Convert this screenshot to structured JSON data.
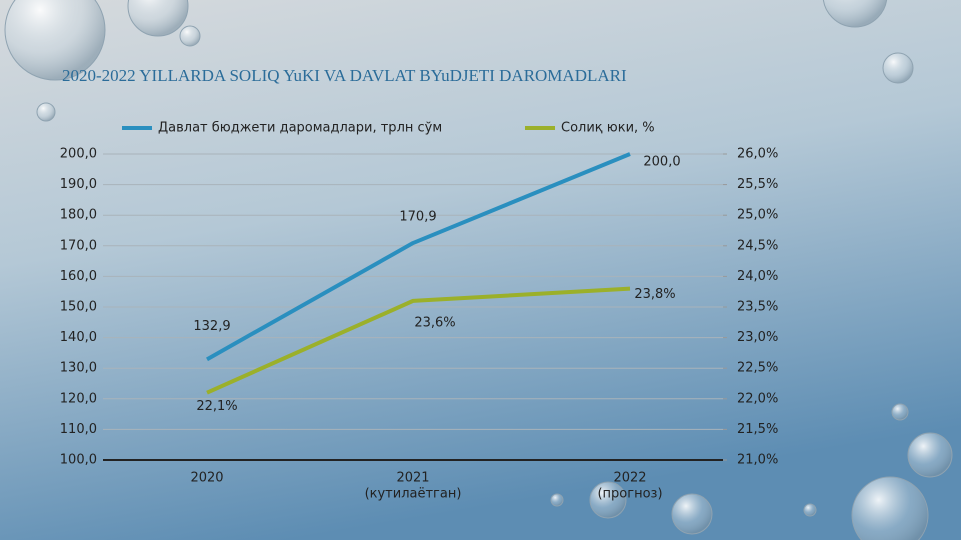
{
  "chart_data": {
    "type": "line",
    "title": "2020-2022 YILLARDA SOLIQ YuKI VA DAVLAT BYuDJETI DAROMADLARI",
    "categories": [
      "2020",
      "2021",
      "2022"
    ],
    "category_notes": [
      null,
      "(кутилаётган)",
      "(прогноз)"
    ],
    "series": [
      {
        "name": "Давлат бюджети даромадлари, трлн сўм",
        "color": "#2a8fbf",
        "values": [
          132.9,
          170.9,
          200.0
        ],
        "value_labels": [
          "132,9",
          "170,9",
          "200,0"
        ]
      },
      {
        "name": "Солиқ юки, %",
        "color": "#9bb02a",
        "axis": "y2",
        "values": [
          22.1,
          23.6,
          23.8
        ],
        "value_labels": [
          "22,1%",
          "23,6%",
          "23,8%"
        ]
      }
    ],
    "ylim": [
      100,
      200
    ],
    "yticks": [
      {
        "value": 100,
        "label": "100,0"
      },
      {
        "value": 110,
        "label": "110,0"
      },
      {
        "value": 120,
        "label": "120,0"
      },
      {
        "value": 130,
        "label": "130,0"
      },
      {
        "value": 140,
        "label": "140,0"
      },
      {
        "value": 150,
        "label": "150,0"
      },
      {
        "value": 160,
        "label": "160,0"
      },
      {
        "value": 170,
        "label": "170,0"
      },
      {
        "value": 180,
        "label": "180,0"
      },
      {
        "value": 190,
        "label": "190,0"
      },
      {
        "value": 200,
        "label": "200,0"
      }
    ],
    "y2lim": [
      21,
      26
    ],
    "y2ticks": [
      {
        "value": 21,
        "label": "21,0%"
      },
      {
        "value": 21.5,
        "label": "21,5%"
      },
      {
        "value": 22,
        "label": "22,0%"
      },
      {
        "value": 22.5,
        "label": "22,5%"
      },
      {
        "value": 23,
        "label": "23,0%"
      },
      {
        "value": 23.5,
        "label": "23,5%"
      },
      {
        "value": 24,
        "label": "24,0%"
      },
      {
        "value": 24.5,
        "label": "24,5%"
      },
      {
        "value": 25,
        "label": "25,0%"
      },
      {
        "value": 25.5,
        "label": "25,5%"
      },
      {
        "value": 26,
        "label": "26,0%"
      }
    ],
    "grid": true,
    "legend": "top"
  }
}
